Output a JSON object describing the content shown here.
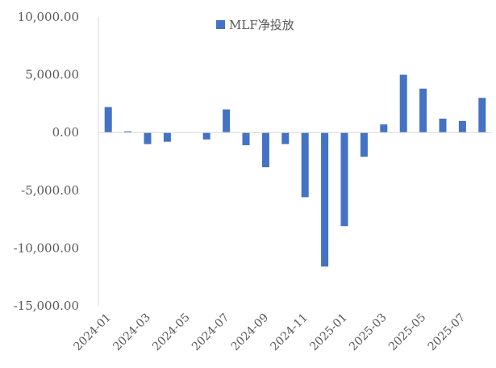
{
  "chart_data": {
    "type": "bar",
    "categories": [
      "2024-01",
      "2024-02",
      "2024-03",
      "2024-04",
      "2024-05",
      "2024-06",
      "2024-07",
      "2024-08",
      "2024-09",
      "2024-10",
      "2024-11",
      "2024-12",
      "2025-01",
      "2025-02",
      "2025-03",
      "2025-04",
      "2025-05",
      "2025-06",
      "2025-07",
      "2025-08"
    ],
    "x_tick_labels": [
      "2024-01",
      "2024-03",
      "2024-05",
      "2024-07",
      "2024-09",
      "2024-11",
      "2025-01",
      "2025-03",
      "2025-05",
      "2025-07"
    ],
    "series": [
      {
        "name": "MLF净投放",
        "color": "#4472C4",
        "values": [
          2200,
          100,
          -1000,
          -800,
          0,
          -600,
          2000,
          -1100,
          -3000,
          -1000,
          -5600,
          -11600,
          -8100,
          -2100,
          700,
          5000,
          3800,
          1200,
          1000,
          3000
        ]
      }
    ],
    "ylim": [
      -15000,
      10000
    ],
    "y_ticks": [
      10000,
      5000,
      0,
      -5000,
      -10000,
      -15000
    ],
    "y_tick_labels": [
      "10,000.00",
      "5,000.00",
      "0.00",
      "-5,000.00",
      "-10,000.00",
      "-15,000.00"
    ],
    "legend_position": "top-center",
    "grid": false
  }
}
